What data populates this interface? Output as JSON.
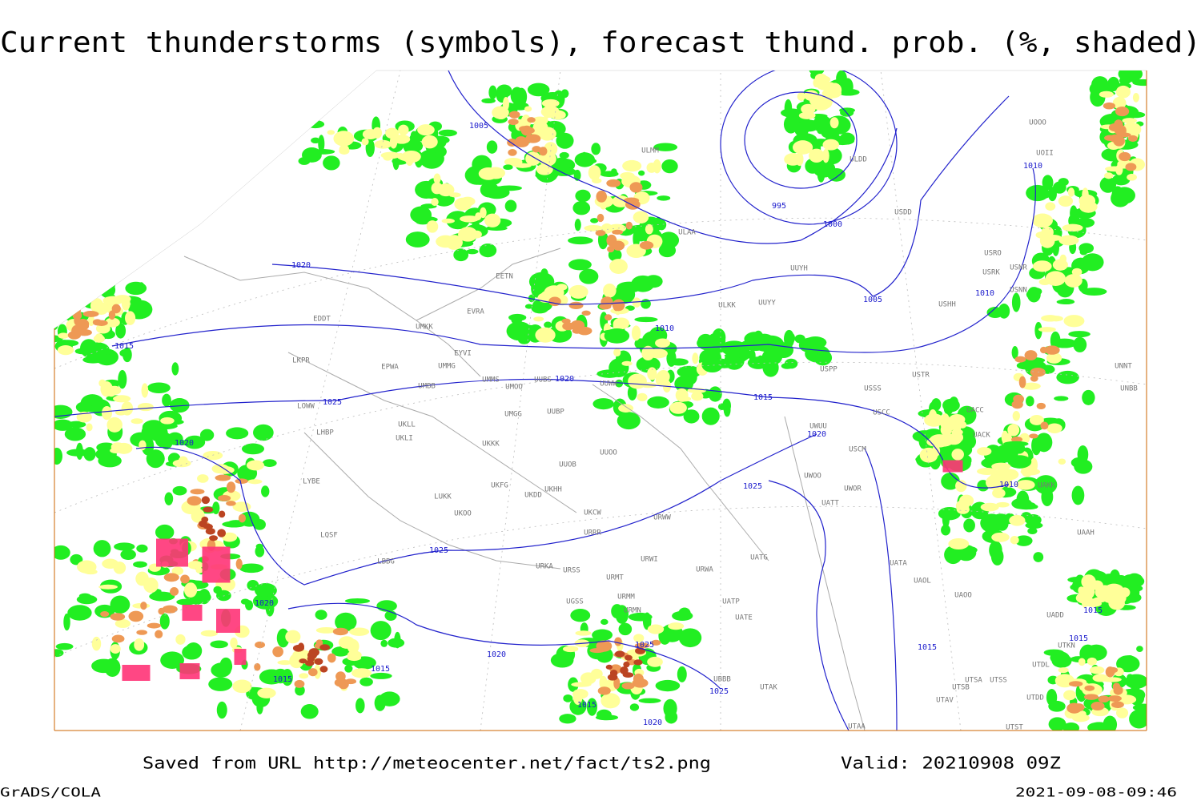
{
  "title": "Current thunderstorms (symbols), forecast thund. prob. (%, shaded)",
  "footer": {
    "saved": "Saved from URL http://meteocenter.net/fact/ts2.png",
    "valid": "Valid: 20210908 09Z",
    "software": "GrADS/COLA",
    "timestamp": "2021-09-08-09:46"
  },
  "isobar_labels": [
    "1005",
    "995",
    "1000",
    "1020",
    "1015",
    "1010",
    "1005",
    "1010",
    "1010",
    "1025",
    "1020",
    "1020",
    "1015",
    "1020",
    "1025",
    "1010",
    "1025",
    "1020",
    "1020",
    "1015",
    "1015",
    "1025",
    "1015",
    "1020",
    "1025",
    "1015",
    "1015",
    "1015"
  ],
  "stations": [
    "ULMM",
    "ULDD",
    "USDD",
    "USRO",
    "USRK",
    "USNR",
    "USNN",
    "USHH",
    "UUYH",
    "ULKK",
    "UUYY",
    "ULAA",
    "EETN",
    "EVRA",
    "EDDT",
    "UMKK",
    "EYVI",
    "UMMG",
    "EPWA",
    "LKPR",
    "UMMS",
    "UMOO",
    "UUBS",
    "UUWW",
    "UMBB",
    "UUBP",
    "UMGG",
    "LOWW",
    "LHBP",
    "UKLL",
    "UKLI",
    "UKKK",
    "UUOO",
    "UUOB",
    "LYBE",
    "LUKK",
    "UKHH",
    "UKFG",
    "UKDD",
    "UKOO",
    "UKCW",
    "URWW",
    "URRR",
    "LQSF",
    "LBBG",
    "URKA",
    "URSS",
    "URWI",
    "URMT",
    "UATG",
    "URWA",
    "UGSS",
    "URMM",
    "URMN",
    "UATP",
    "UATE",
    "UBBB",
    "UTAK",
    "UTAA",
    "USPP",
    "USTR",
    "USSS",
    "USCC",
    "USCM",
    "UWUU",
    "UWOO",
    "UWOR",
    "UATT",
    "UATA",
    "UAOL",
    "UAOO",
    "UACC",
    "UACK",
    "UAKK",
    "UNNT",
    "UNBB",
    "UAAH",
    "UADD",
    "UTKN",
    "UTDL",
    "UTSA",
    "UTSS",
    "UTSB",
    "UTAV",
    "UTDD",
    "UTST",
    "UOOO",
    "UOII"
  ]
}
